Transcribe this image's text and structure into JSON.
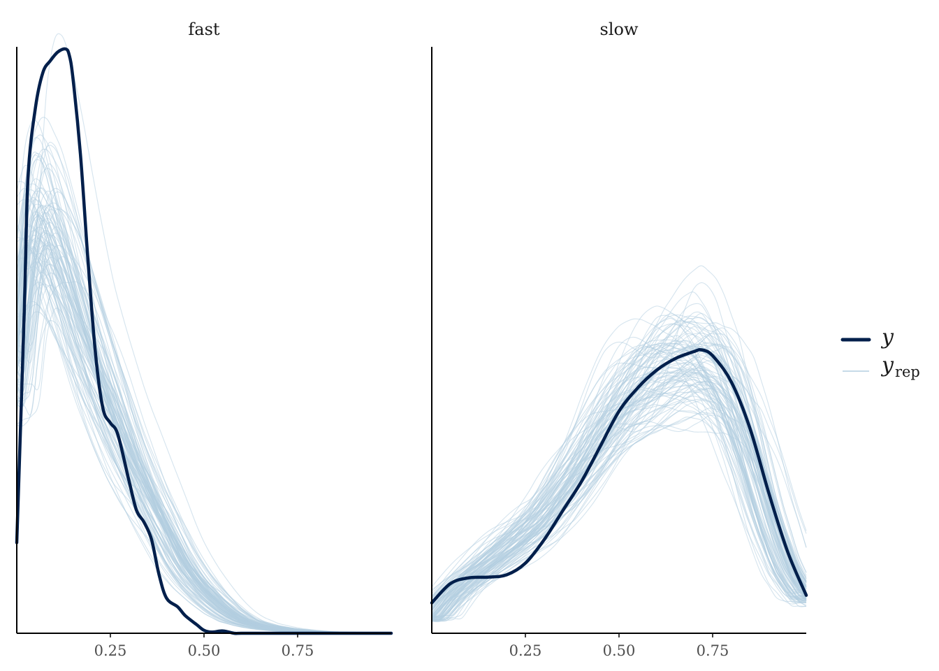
{
  "chart_data": [
    {
      "type": "line",
      "facet": "fast",
      "x_ticks": [
        0.25,
        0.5,
        0.75
      ],
      "x_tick_labels": [
        "0.25",
        "0.50",
        "0.75"
      ],
      "xlim": [
        0.0,
        1.0
      ],
      "ylim": [
        0,
        1
      ],
      "y_axis_labels_shown": false,
      "series": [
        {
          "name": "y",
          "x": [
            0.0,
            0.02,
            0.03,
            0.05,
            0.07,
            0.09,
            0.11,
            0.13,
            0.14,
            0.15,
            0.17,
            0.19,
            0.21,
            0.23,
            0.25,
            0.27,
            0.3,
            0.32,
            0.34,
            0.36,
            0.38,
            0.4,
            0.43,
            0.45,
            0.48,
            0.5,
            0.52,
            0.55,
            0.58,
            0.6,
            0.65,
            1.0
          ],
          "values": [
            0.155,
            0.55,
            0.78,
            0.9,
            0.96,
            0.98,
            0.995,
            1.0,
            0.99,
            0.95,
            0.82,
            0.64,
            0.48,
            0.385,
            0.36,
            0.34,
            0.26,
            0.21,
            0.19,
            0.16,
            0.1,
            0.06,
            0.045,
            0.03,
            0.015,
            0.005,
            0.002,
            0.004,
            0.0,
            0.0,
            0.0,
            0.0
          ]
        },
        {
          "name": "y_rep",
          "x": [
            0.0,
            0.02,
            0.04,
            0.06,
            0.08,
            0.1,
            0.12,
            0.15,
            0.18,
            0.21,
            0.24,
            0.27,
            0.3,
            0.33,
            0.36,
            0.4,
            0.44,
            0.48,
            0.52,
            0.56,
            0.6,
            0.65,
            0.7,
            0.75,
            0.8,
            0.9,
            1.0
          ],
          "values": [
            0.45,
            0.6,
            0.68,
            0.7,
            0.69,
            0.66,
            0.63,
            0.57,
            0.51,
            0.45,
            0.4,
            0.35,
            0.3,
            0.26,
            0.22,
            0.17,
            0.12,
            0.085,
            0.058,
            0.036,
            0.021,
            0.012,
            0.007,
            0.004,
            0.002,
            0.001,
            0.0
          ]
        }
      ]
    },
    {
      "type": "line",
      "facet": "slow",
      "x_ticks": [
        0.25,
        0.5,
        0.75
      ],
      "x_tick_labels": [
        "0.25",
        "0.50",
        "0.75"
      ],
      "xlim": [
        0.0,
        1.0
      ],
      "ylim": [
        0,
        1
      ],
      "y_axis_labels_shown": false,
      "series": [
        {
          "name": "y",
          "x": [
            0.0,
            0.05,
            0.1,
            0.15,
            0.2,
            0.25,
            0.3,
            0.35,
            0.4,
            0.45,
            0.5,
            0.55,
            0.6,
            0.65,
            0.7,
            0.72,
            0.75,
            0.8,
            0.85,
            0.9,
            0.95,
            1.0
          ],
          "values": [
            0.052,
            0.085,
            0.095,
            0.096,
            0.1,
            0.12,
            0.16,
            0.21,
            0.26,
            0.32,
            0.38,
            0.42,
            0.45,
            0.47,
            0.482,
            0.485,
            0.475,
            0.43,
            0.35,
            0.24,
            0.14,
            0.065
          ]
        },
        {
          "name": "y_rep",
          "x": [
            0.0,
            0.05,
            0.1,
            0.15,
            0.2,
            0.25,
            0.3,
            0.35,
            0.4,
            0.45,
            0.5,
            0.55,
            0.6,
            0.65,
            0.7,
            0.75,
            0.8,
            0.85,
            0.9,
            0.95,
            1.0
          ],
          "values": [
            0.025,
            0.065,
            0.095,
            0.12,
            0.145,
            0.17,
            0.2,
            0.245,
            0.29,
            0.34,
            0.385,
            0.42,
            0.45,
            0.465,
            0.47,
            0.45,
            0.4,
            0.31,
            0.2,
            0.11,
            0.06
          ]
        }
      ]
    }
  ],
  "legend": {
    "position": "right",
    "items": [
      {
        "label": "y",
        "subscript": "",
        "color": "#011f4b"
      },
      {
        "label": "y",
        "subscript": "rep",
        "color": "#b3cde0"
      }
    ]
  },
  "colors": {
    "y": "#011f4b",
    "y_rep": "#b3cde0",
    "axis": "#000000"
  },
  "yrep_draws": 100
}
